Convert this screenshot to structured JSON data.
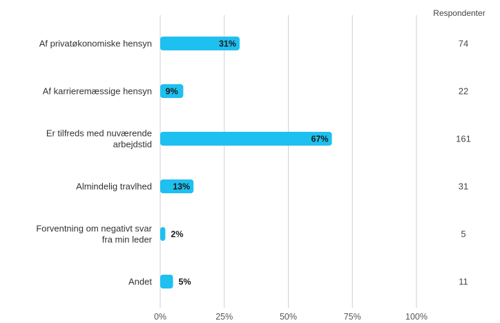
{
  "chart_data": {
    "type": "bar",
    "orientation": "horizontal",
    "categories": [
      [
        "Af privatøkonomiske hensyn"
      ],
      [
        "Af karrieremæssige hensyn"
      ],
      [
        "Er tilfreds med nuværende",
        "arbejdstid"
      ],
      [
        "Almindelig travlhed"
      ],
      [
        "Forventning om negativt svar",
        "fra min leder"
      ],
      [
        "Andet"
      ]
    ],
    "values": [
      31,
      9,
      67,
      13,
      2,
      5
    ],
    "value_labels": [
      "31%",
      "9%",
      "67%",
      "13%",
      "2%",
      "5%"
    ],
    "respondents_header": "Respondenter",
    "respondents": [
      "74",
      "22",
      "161",
      "31",
      "5",
      "11"
    ],
    "x_ticks": [
      0,
      25,
      50,
      75,
      100
    ],
    "x_tick_labels": [
      "0%",
      "25%",
      "50%",
      "75%",
      "100%"
    ],
    "xlim": [
      0,
      100
    ],
    "grid": true,
    "bar_color": "#1ec0ef",
    "grid_color": "#cfcfcf"
  }
}
